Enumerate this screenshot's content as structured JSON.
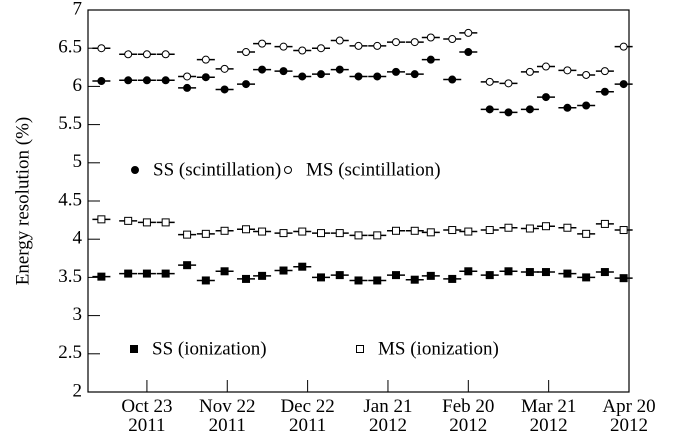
{
  "chart_data": {
    "type": "scatter",
    "y_label": "Energy resolution (%)",
    "x": [
      "2011-10-06",
      "2011-10-16",
      "2011-10-23",
      "2011-10-30",
      "2011-11-07",
      "2011-11-14",
      "2011-11-21",
      "2011-11-29",
      "2011-12-05",
      "2011-12-13",
      "2011-12-20",
      "2011-12-27",
      "2012-01-03",
      "2012-01-10",
      "2012-01-17",
      "2012-01-24",
      "2012-01-31",
      "2012-02-06",
      "2012-02-14",
      "2012-02-20",
      "2012-02-28",
      "2012-03-06",
      "2012-03-14",
      "2012-03-20",
      "2012-03-28",
      "2012-04-04",
      "2012-04-11",
      "2012-04-18"
    ],
    "series": [
      {
        "name": "SS (scintillation)",
        "color": "#000000",
        "marker": "filled-circle",
        "values": [
          6.07,
          6.08,
          6.08,
          6.08,
          5.98,
          6.12,
          5.96,
          6.03,
          6.22,
          6.2,
          6.13,
          6.16,
          6.22,
          6.13,
          6.13,
          6.19,
          6.16,
          6.35,
          6.09,
          6.45,
          5.7,
          5.66,
          5.7,
          5.86,
          5.72,
          5.75,
          5.93,
          6.03
        ]
      },
      {
        "name": "MS (scintillation)",
        "color": "#000000",
        "marker": "open-circle",
        "values": [
          6.5,
          6.42,
          6.42,
          6.42,
          6.13,
          6.35,
          6.23,
          6.45,
          6.56,
          6.52,
          6.47,
          6.5,
          6.6,
          6.53,
          6.53,
          6.58,
          6.58,
          6.64,
          6.62,
          6.7,
          6.06,
          6.04,
          6.19,
          6.26,
          6.21,
          6.15,
          6.2,
          6.52
        ]
      },
      {
        "name": "SS (ionization)",
        "color": "#000000",
        "marker": "filled-square",
        "values": [
          3.51,
          3.55,
          3.55,
          3.55,
          3.66,
          3.46,
          3.58,
          3.48,
          3.52,
          3.59,
          3.64,
          3.5,
          3.53,
          3.46,
          3.46,
          3.53,
          3.47,
          3.52,
          3.48,
          3.58,
          3.53,
          3.58,
          3.57,
          3.57,
          3.55,
          3.5,
          3.57,
          3.49
        ]
      },
      {
        "name": "MS (ionization)",
        "color": "#000000",
        "marker": "open-square",
        "values": [
          4.26,
          4.24,
          4.22,
          4.22,
          4.06,
          4.07,
          4.11,
          4.13,
          4.1,
          4.08,
          4.1,
          4.08,
          4.08,
          4.05,
          4.05,
          4.11,
          4.11,
          4.09,
          4.12,
          4.1,
          4.12,
          4.15,
          4.14,
          4.17,
          4.15,
          4.07,
          4.2,
          4.12
        ]
      }
    ],
    "xlim": [
      "2011-10-01",
      "2012-04-20"
    ],
    "xticks": [
      {
        "value": "2011-10-23",
        "label": "Oct 23\n2011"
      },
      {
        "value": "2011-11-22",
        "label": "Nov 22\n2011"
      },
      {
        "value": "2011-12-22",
        "label": "Dec 22\n2011"
      },
      {
        "value": "2012-01-21",
        "label": "Jan 21\n2012"
      },
      {
        "value": "2012-02-20",
        "label": "Feb 20\n2012"
      },
      {
        "value": "2012-03-21",
        "label": "Mar 21\n2012"
      },
      {
        "value": "2012-04-20",
        "label": "Apr 20\n2012"
      }
    ],
    "ylim": [
      2,
      7
    ],
    "yticks": [
      2,
      2.5,
      3,
      3.5,
      4,
      4.5,
      5,
      5.5,
      6,
      6.5,
      7
    ],
    "grid": false
  }
}
